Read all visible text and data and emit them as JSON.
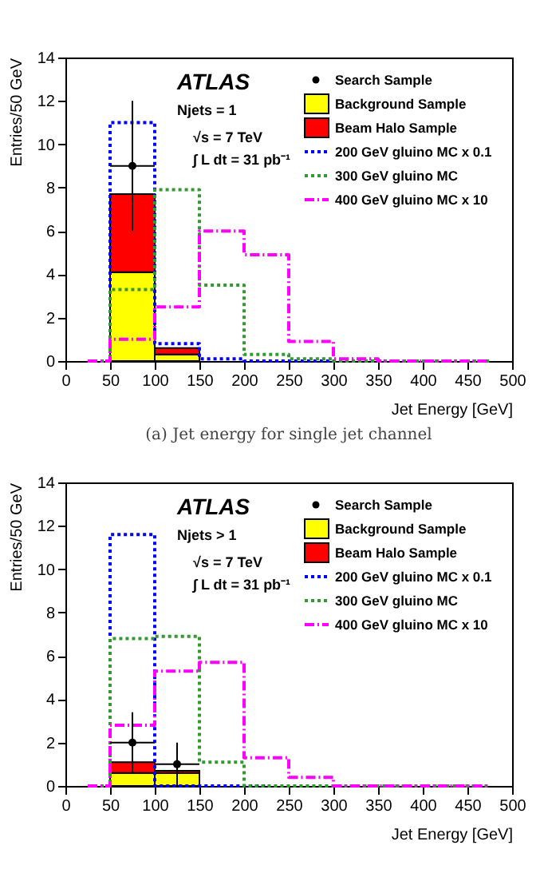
{
  "chart_data": [
    {
      "type": "bar",
      "title": "(a) Jet energy for single jet channel",
      "xlabel": "Jet Energy [GeV]",
      "ylabel": "Entries/50 GeV",
      "xlim": [
        0,
        500
      ],
      "ylim": [
        0,
        14
      ],
      "xticks": [
        0,
        50,
        100,
        150,
        200,
        250,
        300,
        350,
        400,
        450,
        500
      ],
      "yticks": [
        0,
        2,
        4,
        6,
        8,
        10,
        12,
        14
      ],
      "grid": false,
      "legend": "top right",
      "stacked": true,
      "annotations": [
        "ATLAS",
        "Njets = 1",
        "√s = 7 TeV",
        "∫ L dt = 31 pb⁻¹"
      ],
      "series": [
        {
          "name": "Search Sample",
          "type": "scatter",
          "color": "#000000",
          "marker": "circle",
          "x": [
            75
          ],
          "values": [
            9
          ],
          "errors": [
            [
              6,
              12
            ]
          ],
          "xerrors": [
            25
          ]
        },
        {
          "name": "Background Sample",
          "color": "#ffff00",
          "x": [
            75,
            125
          ],
          "values": [
            4.1,
            0.3
          ]
        },
        {
          "name": "Beam Halo Sample",
          "color": "#ff0000",
          "x": [
            75,
            125
          ],
          "values": [
            3.6,
            0.3
          ]
        },
        {
          "name": "200 GeV gluino MC x 0.1",
          "type": "step",
          "color": "#0000ff",
          "line_style": "dotted",
          "x": [
            25,
            75,
            125,
            175,
            225,
            275,
            325,
            375
          ],
          "values": [
            0,
            11,
            0.8,
            0.1,
            0,
            0,
            0,
            0
          ]
        },
        {
          "name": "300 GeV gluino MC",
          "type": "step",
          "color": "#339933",
          "line_style": "dotted",
          "x": [
            25,
            75,
            125,
            175,
            225,
            275,
            325,
            375,
            425,
            475
          ],
          "values": [
            0,
            3.3,
            7.9,
            3.5,
            0.3,
            0.1,
            0,
            0,
            0,
            0
          ]
        },
        {
          "name": "400 GeV gluino MC x 10",
          "type": "step",
          "color": "#ff00ff",
          "line_style": "dashed",
          "x": [
            25,
            75,
            125,
            175,
            225,
            275,
            325,
            375,
            425,
            475
          ],
          "values": [
            0,
            1.0,
            2.5,
            6.0,
            4.9,
            0.9,
            0.1,
            0,
            0,
            0
          ]
        }
      ]
    },
    {
      "type": "bar",
      "xlabel": "Jet Energy [GeV]",
      "ylabel": "Entries/50 GeV",
      "xlim": [
        0,
        500
      ],
      "ylim": [
        0,
        14
      ],
      "xticks": [
        0,
        50,
        100,
        150,
        200,
        250,
        300,
        350,
        400,
        450,
        500
      ],
      "yticks": [
        0,
        2,
        4,
        6,
        8,
        10,
        12,
        14
      ],
      "grid": false,
      "legend": "top right",
      "stacked": true,
      "annotations": [
        "ATLAS",
        "Njets > 1",
        "√s = 7 TeV",
        "∫ L dt = 31 pb⁻¹"
      ],
      "series": [
        {
          "name": "Search Sample",
          "type": "scatter",
          "color": "#000000",
          "marker": "circle",
          "x": [
            75,
            125
          ],
          "values": [
            2,
            1
          ],
          "errors": [
            [
              0.6,
              3.4
            ],
            [
              0,
              2
            ]
          ],
          "xerrors": [
            25,
            25
          ]
        },
        {
          "name": "Background Sample",
          "color": "#ffff00",
          "x": [
            75,
            125
          ],
          "values": [
            0.6,
            0.6
          ]
        },
        {
          "name": "Beam Halo Sample",
          "color": "#ff0000",
          "x": [
            75,
            125
          ],
          "values": [
            0.5,
            0.1
          ]
        },
        {
          "name": "200 GeV gluino MC x 0.1",
          "type": "step",
          "color": "#0000ff",
          "line_style": "dotted",
          "x": [
            25,
            75,
            125,
            175,
            225
          ],
          "values": [
            0,
            11.6,
            0,
            0,
            0
          ]
        },
        {
          "name": "300 GeV gluino MC",
          "type": "step",
          "color": "#339933",
          "line_style": "dotted",
          "x": [
            25,
            75,
            125,
            175,
            225,
            275,
            325,
            375,
            425,
            475
          ],
          "values": [
            0,
            6.8,
            6.9,
            1.1,
            0,
            0,
            0,
            0,
            0,
            0
          ]
        },
        {
          "name": "400 GeV gluino MC x 10",
          "type": "step",
          "color": "#ff00ff",
          "line_style": "dashed",
          "x": [
            25,
            75,
            125,
            175,
            225,
            275,
            325,
            375,
            425,
            475
          ],
          "values": [
            0,
            2.8,
            5.3,
            5.7,
            1.3,
            0.4,
            0,
            0,
            0,
            0
          ]
        }
      ]
    }
  ]
}
